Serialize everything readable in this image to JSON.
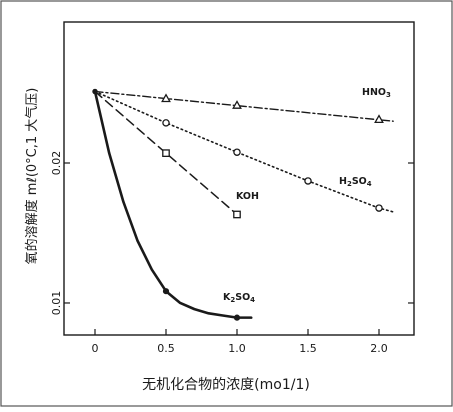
{
  "chart_data": {
    "type": "line",
    "title": "",
    "xlabel": "无机化合物的浓度(mo1/1)",
    "ylabel": "氧的溶解度 mℓ(0°C,1 大气压)",
    "xlim": [
      -0.5,
      2.2
    ],
    "ylim": [
      0.0075,
      0.035
    ],
    "y_scale": "log",
    "x_ticks": [
      0,
      0.5,
      1.0,
      1.5,
      2.0
    ],
    "x_tick_labels": [
      "0",
      "0.5",
      "1.0",
      "1.5",
      "2.0"
    ],
    "y_ticks": [
      0.01,
      0.02
    ],
    "y_tick_labels": [
      "0.01",
      "0.02"
    ],
    "grid": false,
    "legend": "none (series labelled inline)",
    "series": [
      {
        "name": "HNO3",
        "label_main": "HNO",
        "label_sub": "3",
        "marker": "triangle",
        "dash": "dashdot",
        "x": [
          0,
          0.5,
          1.0,
          2.0
        ],
        "y": [
          0.0285,
          0.0275,
          0.0266,
          0.0248
        ],
        "line_x": [
          0,
          2.1
        ],
        "line_y": [
          0.0285,
          0.0246
        ]
      },
      {
        "name": "H2SO4",
        "label_parts": [
          "H",
          "2",
          "SO",
          "4"
        ],
        "marker": "circle",
        "dash": "dotted",
        "x": [
          0,
          0.5,
          1.0,
          1.5,
          2.0
        ],
        "y": [
          0.0285,
          0.0244,
          0.0211,
          0.0183,
          0.016
        ],
        "line_x": [
          0,
          0.5,
          1.0,
          1.5,
          2.0,
          2.1
        ],
        "line_y": [
          0.0285,
          0.0244,
          0.0211,
          0.0183,
          0.016,
          0.0157
        ]
      },
      {
        "name": "KOH",
        "label_main": "KOH",
        "marker": "square",
        "dash": "dashed",
        "x": [
          0,
          0.5,
          1.0
        ],
        "y": [
          0.0285,
          0.021,
          0.0155
        ],
        "line_x": [
          0,
          0.5,
          1.0
        ],
        "line_y": [
          0.0285,
          0.021,
          0.0155
        ]
      },
      {
        "name": "K2SO4",
        "label_parts": [
          "K",
          "2",
          "SO",
          "4"
        ],
        "marker": "dot",
        "dash": "solid",
        "x": [
          0,
          0.5,
          1.0
        ],
        "y": [
          0.0285,
          0.0106,
          0.0093
        ],
        "line_x": [
          0,
          0.1,
          0.2,
          0.3,
          0.4,
          0.5,
          0.6,
          0.7,
          0.8,
          0.9,
          1.0,
          1.1
        ],
        "line_y": [
          0.0285,
          0.021,
          0.0165,
          0.0136,
          0.0118,
          0.0106,
          0.01,
          0.0097,
          0.0095,
          0.0094,
          0.0093,
          0.0093
        ]
      }
    ]
  }
}
